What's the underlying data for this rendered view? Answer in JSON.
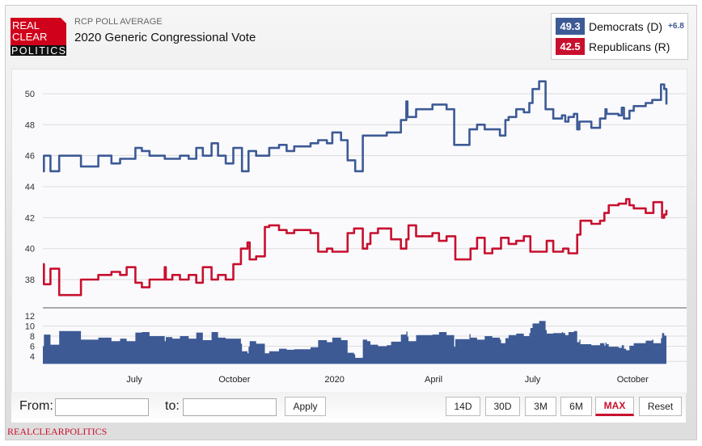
{
  "header": {
    "logo_text": [
      "REAL",
      "CLEAR",
      "POLITICS"
    ],
    "subtitle": "RCP POLL AVERAGE",
    "title": "2020 Generic Congressional Vote"
  },
  "legend": {
    "items": [
      {
        "value": "49.3",
        "name": "Democrats (D)",
        "spread": "+6.8",
        "color": "#3d5a95"
      },
      {
        "value": "42.5",
        "name": "Republicans (R)",
        "color": "#c8102e"
      }
    ]
  },
  "controls": {
    "from_label": "From:",
    "from_value": "",
    "to_label": "to:",
    "to_value": "",
    "apply_label": "Apply",
    "ranges": [
      "14D",
      "30D",
      "3M",
      "6M",
      "MAX"
    ],
    "active_range": "MAX",
    "reset_label": "Reset"
  },
  "footer_brand": "REALCLEARPOLITICS",
  "chart_data": {
    "type": "line",
    "step": true,
    "grid": true,
    "ylim": [
      36.9,
      51.5
    ],
    "yticks": [
      38,
      40,
      42,
      44,
      46,
      48,
      50
    ],
    "xlim": [
      "2019-04-08",
      "2020-11-01"
    ],
    "xticks": [
      {
        "date": "2019-07-01",
        "label": "July"
      },
      {
        "date": "2019-10-01",
        "label": "October"
      },
      {
        "date": "2020-01-01",
        "label": "2020"
      },
      {
        "date": "2020-04-01",
        "label": "April"
      },
      {
        "date": "2020-07-01",
        "label": "July"
      },
      {
        "date": "2020-10-01",
        "label": "October"
      }
    ],
    "series": [
      {
        "name": "Democrats (D)",
        "color": "#3d5a95",
        "points": [
          [
            "2019-04-08",
            45.0
          ],
          [
            "2019-04-09",
            46.0
          ],
          [
            "2019-04-15",
            45.0
          ],
          [
            "2019-04-23",
            46.0
          ],
          [
            "2019-05-13",
            45.3
          ],
          [
            "2019-05-29",
            46.0
          ],
          [
            "2019-06-10",
            45.5
          ],
          [
            "2019-06-18",
            45.8
          ],
          [
            "2019-07-02",
            46.5
          ],
          [
            "2019-07-08",
            46.3
          ],
          [
            "2019-07-15",
            46.0
          ],
          [
            "2019-07-29",
            45.8
          ],
          [
            "2019-08-12",
            46.0
          ],
          [
            "2019-08-20",
            45.8
          ],
          [
            "2019-08-27",
            46.5
          ],
          [
            "2019-09-02",
            46.0
          ],
          [
            "2019-09-10",
            46.8
          ],
          [
            "2019-09-16",
            46.0
          ],
          [
            "2019-09-23",
            45.5
          ],
          [
            "2019-09-30",
            46.5
          ],
          [
            "2019-10-08",
            45.0
          ],
          [
            "2019-10-14",
            46.3
          ],
          [
            "2019-10-21",
            46.0
          ],
          [
            "2019-11-02",
            46.5
          ],
          [
            "2019-11-11",
            46.7
          ],
          [
            "2019-11-18",
            46.3
          ],
          [
            "2019-11-25",
            46.6
          ],
          [
            "2019-12-10",
            46.8
          ],
          [
            "2019-12-17",
            47.0
          ],
          [
            "2019-12-25",
            46.8
          ],
          [
            "2019-12-30",
            47.5
          ],
          [
            "2020-01-07",
            47.0
          ],
          [
            "2020-01-13",
            45.7
          ],
          [
            "2020-01-20",
            45.0
          ],
          [
            "2020-01-27",
            47.3
          ],
          [
            "2020-02-18",
            47.5
          ],
          [
            "2020-03-02",
            48.3
          ],
          [
            "2020-03-07",
            49.5
          ],
          [
            "2020-03-08",
            48.5
          ],
          [
            "2020-03-16",
            49.0
          ],
          [
            "2020-03-31",
            49.3
          ],
          [
            "2020-04-13",
            49.0
          ],
          [
            "2020-04-20",
            46.7
          ],
          [
            "2020-05-04",
            47.7
          ],
          [
            "2020-05-11",
            48.0
          ],
          [
            "2020-05-18",
            47.7
          ],
          [
            "2020-06-01",
            47.3
          ],
          [
            "2020-06-06",
            48.3
          ],
          [
            "2020-06-09",
            48.5
          ],
          [
            "2020-06-16",
            49.0
          ],
          [
            "2020-06-23",
            48.8
          ],
          [
            "2020-06-28",
            49.4
          ],
          [
            "2020-07-01",
            50.3
          ],
          [
            "2020-07-07",
            50.8
          ],
          [
            "2020-07-13",
            49.0
          ],
          [
            "2020-07-20",
            48.4
          ],
          [
            "2020-07-28",
            48.6
          ],
          [
            "2020-07-31",
            48.2
          ],
          [
            "2020-08-03",
            48.5
          ],
          [
            "2020-08-08",
            48.7
          ],
          [
            "2020-08-11",
            47.7
          ],
          [
            "2020-08-13",
            48.2
          ],
          [
            "2020-08-24",
            47.8
          ],
          [
            "2020-09-01",
            48.4
          ],
          [
            "2020-09-06",
            49.0
          ],
          [
            "2020-09-07",
            48.7
          ],
          [
            "2020-09-18",
            48.6
          ],
          [
            "2020-09-21",
            49.1
          ],
          [
            "2020-09-23",
            48.4
          ],
          [
            "2020-09-28",
            48.9
          ],
          [
            "2020-10-02",
            49.2
          ],
          [
            "2020-10-13",
            49.4
          ],
          [
            "2020-10-19",
            49.6
          ],
          [
            "2020-10-27",
            50.6
          ],
          [
            "2020-10-30",
            50.3
          ],
          [
            "2020-11-01",
            49.3
          ]
        ]
      },
      {
        "name": "Republicans (R)",
        "color": "#c8102e",
        "points": [
          [
            "2019-04-08",
            39.0
          ],
          [
            "2019-04-09",
            37.7
          ],
          [
            "2019-04-15",
            38.7
          ],
          [
            "2019-04-23",
            37.0
          ],
          [
            "2019-05-13",
            38.0
          ],
          [
            "2019-05-29",
            38.3
          ],
          [
            "2019-06-10",
            38.5
          ],
          [
            "2019-06-18",
            38.3
          ],
          [
            "2019-06-24",
            38.8
          ],
          [
            "2019-07-02",
            37.8
          ],
          [
            "2019-07-08",
            37.5
          ],
          [
            "2019-07-15",
            38.0
          ],
          [
            "2019-07-29",
            38.8
          ],
          [
            "2019-07-30",
            38.0
          ],
          [
            "2019-08-05",
            38.3
          ],
          [
            "2019-08-12",
            38.0
          ],
          [
            "2019-08-20",
            38.3
          ],
          [
            "2019-08-27",
            37.8
          ],
          [
            "2019-09-02",
            38.8
          ],
          [
            "2019-09-10",
            38.0
          ],
          [
            "2019-09-16",
            38.3
          ],
          [
            "2019-09-23",
            38.0
          ],
          [
            "2019-09-30",
            39.0
          ],
          [
            "2019-10-07",
            40.0
          ],
          [
            "2019-10-13",
            40.4
          ],
          [
            "2019-10-15",
            39.3
          ],
          [
            "2019-10-21",
            39.5
          ],
          [
            "2019-10-29",
            41.4
          ],
          [
            "2019-11-02",
            41.5
          ],
          [
            "2019-11-11",
            41.2
          ],
          [
            "2019-11-18",
            41.0
          ],
          [
            "2019-11-25",
            41.2
          ],
          [
            "2019-12-10",
            41.0
          ],
          [
            "2019-12-17",
            39.8
          ],
          [
            "2019-12-25",
            40.0
          ],
          [
            "2019-12-30",
            39.8
          ],
          [
            "2020-01-13",
            41.0
          ],
          [
            "2020-01-19",
            41.3
          ],
          [
            "2020-01-27",
            40.0
          ],
          [
            "2020-01-31",
            40.3
          ],
          [
            "2020-02-03",
            41.0
          ],
          [
            "2020-02-10",
            41.3
          ],
          [
            "2020-02-22",
            40.6
          ],
          [
            "2020-03-02",
            40.0
          ],
          [
            "2020-03-07",
            40.6
          ],
          [
            "2020-03-09",
            41.5
          ],
          [
            "2020-03-16",
            40.8
          ],
          [
            "2020-03-31",
            41.0
          ],
          [
            "2020-04-06",
            40.5
          ],
          [
            "2020-04-13",
            40.8
          ],
          [
            "2020-04-21",
            39.3
          ],
          [
            "2020-05-05",
            40.0
          ],
          [
            "2020-05-11",
            40.7
          ],
          [
            "2020-05-18",
            39.7
          ],
          [
            "2020-05-25",
            40.0
          ],
          [
            "2020-06-02",
            40.7
          ],
          [
            "2020-06-09",
            40.3
          ],
          [
            "2020-06-16",
            40.5
          ],
          [
            "2020-06-23",
            40.8
          ],
          [
            "2020-06-29",
            39.8
          ],
          [
            "2020-07-14",
            40.5
          ],
          [
            "2020-07-20",
            39.8
          ],
          [
            "2020-07-29",
            40.0
          ],
          [
            "2020-08-03",
            39.7
          ],
          [
            "2020-08-11",
            40.9
          ],
          [
            "2020-08-14",
            41.8
          ],
          [
            "2020-08-24",
            41.6
          ],
          [
            "2020-09-01",
            41.8
          ],
          [
            "2020-09-05",
            42.3
          ],
          [
            "2020-09-09",
            42.8
          ],
          [
            "2020-09-18",
            42.9
          ],
          [
            "2020-09-25",
            43.2
          ],
          [
            "2020-09-28",
            42.8
          ],
          [
            "2020-10-02",
            42.6
          ],
          [
            "2020-10-13",
            42.3
          ],
          [
            "2020-10-20",
            43.0
          ],
          [
            "2020-10-28",
            42.0
          ],
          [
            "2020-10-30",
            42.2
          ],
          [
            "2020-11-01",
            42.5
          ]
        ]
      }
    ],
    "spread_panel": {
      "type": "area",
      "description_source": "Democrats minus Republicans",
      "color": "#3d5a95",
      "ylim": [
        2.5,
        13
      ],
      "yticks": [
        4,
        6,
        8,
        10,
        12
      ]
    }
  }
}
